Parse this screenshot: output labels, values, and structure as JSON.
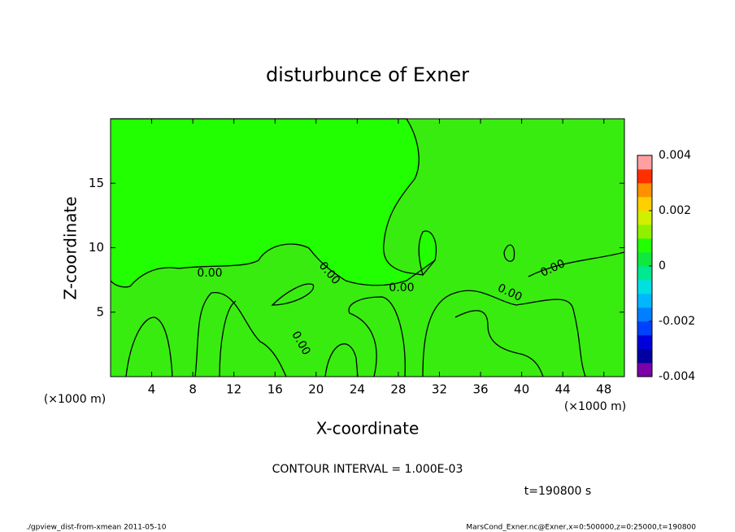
{
  "chart_data": {
    "type": "contour",
    "title": "disturbunce of Exner",
    "xlabel": "X-coordinate",
    "ylabel": "Z-coordinate",
    "x_unit": "(×1000 m)",
    "xlim": [
      0,
      50
    ],
    "ylim": [
      0,
      20
    ],
    "xticks": [
      4,
      8,
      12,
      16,
      20,
      24,
      28,
      32,
      36,
      40,
      44,
      48
    ],
    "yticks": [
      5,
      10,
      15
    ],
    "contour_label": "0.00",
    "contour_interval": "CONTOUR INTERVAL = 1.000E-03",
    "time": "t=190800 s",
    "colorbar": {
      "lim": [
        -0.004,
        0.004
      ],
      "ticks": [
        -0.004,
        -0.002,
        0,
        0.002,
        0.004
      ],
      "colors": [
        "#7a00a8",
        "#0000a0",
        "#0000dc",
        "#0040ff",
        "#0080ff",
        "#00b8ff",
        "#00e0e0",
        "#00e890",
        "#10e840",
        "#22ff00",
        "#90f000",
        "#d0f000",
        "#ffd000",
        "#ff9000",
        "#ff3000",
        "#ffa0a0"
      ]
    },
    "footer_left": "./gpview_dist-from-xmean  2011-05-10",
    "footer_right": "MarsCond_Exner.nc@Exner,x=0:500000,z=0:25000,t=190800"
  }
}
